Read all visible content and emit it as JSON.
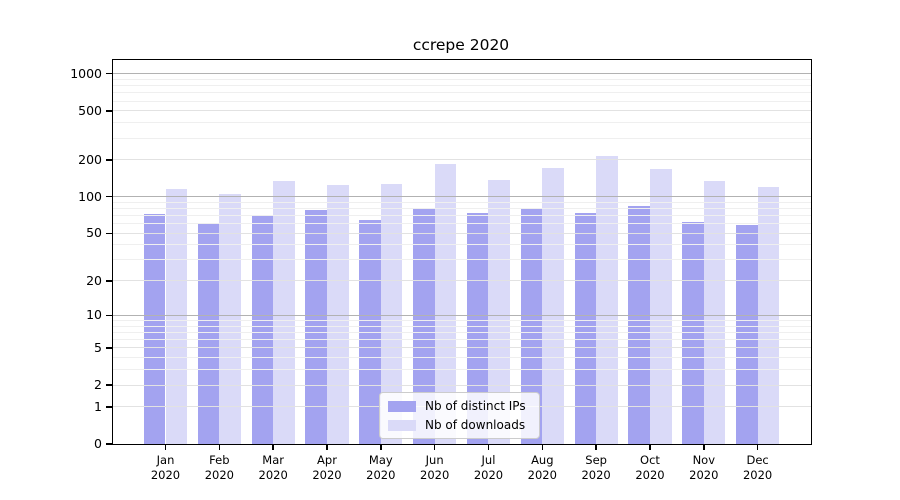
{
  "chart_data": {
    "type": "bar",
    "title": "ccrepe 2020",
    "xlabel": "",
    "ylabel": "",
    "categories": [
      "Jan",
      "Feb",
      "Mar",
      "Apr",
      "May",
      "Jun",
      "Jul",
      "Aug",
      "Sep",
      "Oct",
      "Nov",
      "Dec"
    ],
    "year": "2020",
    "series": [
      {
        "name": "Nb of distinct IPs",
        "color": "#a3a3f0",
        "values": [
          72,
          61,
          71,
          78,
          64,
          79,
          73,
          80,
          73,
          84,
          62,
          59
        ]
      },
      {
        "name": "Nb of downloads",
        "color": "#dadaf8",
        "values": [
          115,
          105,
          135,
          125,
          128,
          186,
          138,
          172,
          213,
          169,
          135,
          121
        ]
      }
    ],
    "yscale": "log1p",
    "ylim": [
      0,
      1273
    ],
    "yticks": [
      0,
      1,
      2,
      5,
      10,
      20,
      50,
      100,
      200,
      500,
      1000
    ],
    "minor_yticks": [
      3,
      4,
      6,
      7,
      8,
      9,
      30,
      40,
      60,
      70,
      80,
      90,
      300,
      400,
      600,
      700,
      800,
      900
    ],
    "grid": true,
    "legend_position": "lower center"
  },
  "style": {
    "axis_color": "#000000",
    "grid_major_color": "#b2b2b2",
    "grid_minor_color": "#e2e2e2",
    "grid_faint_color": "#efefef",
    "legend_border": "#cccccc",
    "legend_bg": "rgba(255,255,255,0.85)"
  }
}
